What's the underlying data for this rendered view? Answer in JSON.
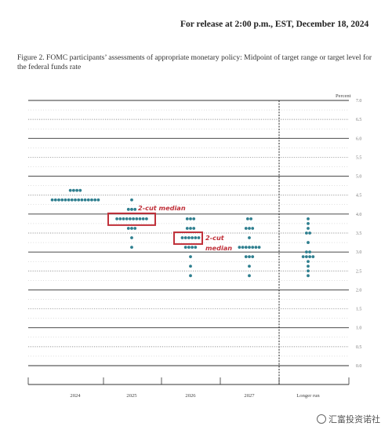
{
  "release_line": "For release at 2:00 p.m., EST, December 18, 2024",
  "figure_title": "Figure 2.  FOMC participants’ assessments of appropriate monetary policy:  Midpoint of target range or target level for the federal funds rate",
  "watermark": "汇富投资诺社",
  "colors": {
    "dot": "#2f7f8f",
    "annotation": "#c0313a",
    "grid": "#333333"
  },
  "chart_data": {
    "type": "scatter",
    "ylabel": "Percent",
    "ylim": [
      0,
      7
    ],
    "yticks": [
      "0.0",
      "0.5",
      "1.0",
      "1.5",
      "2.0",
      "2.5",
      "3.0",
      "3.5",
      "4.0",
      "4.5",
      "5.0",
      "5.5",
      "6.0",
      "6.5",
      "7.0"
    ],
    "categories": [
      "2024",
      "2025",
      "2026",
      "2027",
      "Longer run"
    ],
    "dots": [
      {
        "category": "2024",
        "rows": [
          {
            "rate": 4.625,
            "count": 4
          },
          {
            "rate": 4.375,
            "count": 15
          }
        ]
      },
      {
        "category": "2025",
        "rows": [
          {
            "rate": 4.375,
            "count": 1
          },
          {
            "rate": 4.125,
            "count": 3
          },
          {
            "rate": 3.875,
            "count": 10
          },
          {
            "rate": 3.625,
            "count": 3
          },
          {
            "rate": 3.375,
            "count": 1
          },
          {
            "rate": 3.125,
            "count": 1
          }
        ]
      },
      {
        "category": "2026",
        "rows": [
          {
            "rate": 3.875,
            "count": 3
          },
          {
            "rate": 3.625,
            "count": 3
          },
          {
            "rate": 3.375,
            "count": 6
          },
          {
            "rate": 3.125,
            "count": 4
          },
          {
            "rate": 2.875,
            "count": 1
          },
          {
            "rate": 2.625,
            "count": 1
          },
          {
            "rate": 2.375,
            "count": 1
          }
        ]
      },
      {
        "category": "2027",
        "rows": [
          {
            "rate": 3.875,
            "count": 2
          },
          {
            "rate": 3.625,
            "count": 3
          },
          {
            "rate": 3.375,
            "count": 1
          },
          {
            "rate": 3.125,
            "count": 7
          },
          {
            "rate": 2.875,
            "count": 3
          },
          {
            "rate": 2.625,
            "count": 1
          },
          {
            "rate": 2.375,
            "count": 1
          }
        ]
      },
      {
        "category": "Longer run",
        "rows": [
          {
            "rate": 3.875,
            "count": 1
          },
          {
            "rate": 3.75,
            "count": 1
          },
          {
            "rate": 3.625,
            "count": 1
          },
          {
            "rate": 3.5,
            "count": 2
          },
          {
            "rate": 3.25,
            "count": 1
          },
          {
            "rate": 3.0,
            "count": 2
          },
          {
            "rate": 2.875,
            "count": 4
          },
          {
            "rate": 2.75,
            "count": 1
          },
          {
            "rate": 2.625,
            "count": 1
          },
          {
            "rate": 2.5,
            "count": 1
          },
          {
            "rate": 2.375,
            "count": 1
          }
        ]
      }
    ],
    "annotations": [
      {
        "text": "2-cut median",
        "category": "2025",
        "rate": 3.875
      },
      {
        "text": "2-cut",
        "text2": "median",
        "category": "2026",
        "rate": 3.375
      }
    ]
  }
}
